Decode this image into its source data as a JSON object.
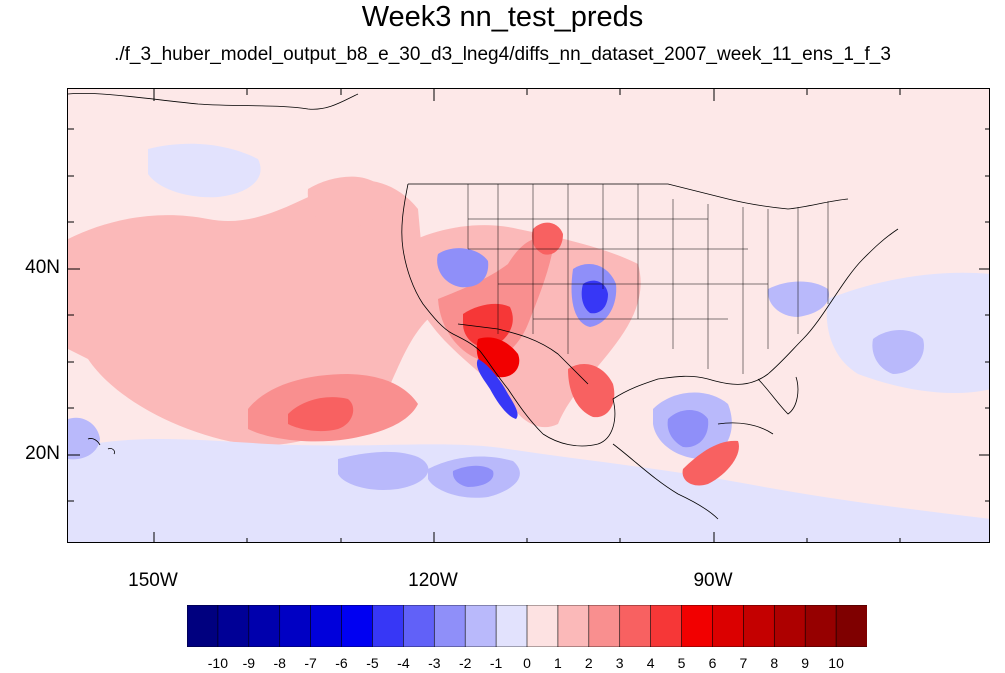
{
  "figure": {
    "title": "Week3 nn_test_preds",
    "subtitle": "./f_3_huber_model_output_b8_e_30_d3_lneg4/diffs_nn_dataset_2007_week_11_ens_1_f_3"
  },
  "map": {
    "projection": "cylindrical equidistant",
    "lon_range": [
      -160,
      -60
    ],
    "lat_range": [
      10,
      58
    ],
    "lat_ticks": [
      {
        "value": 40,
        "label": "40N"
      },
      {
        "value": 20,
        "label": "20N"
      }
    ],
    "lon_ticks": [
      {
        "value": -150,
        "label": "150W"
      },
      {
        "value": -120,
        "label": "120W"
      },
      {
        "value": -90,
        "label": "90W"
      }
    ],
    "background_level": "0 to 1",
    "features": [
      "coastlines",
      "US state boundaries",
      "national borders"
    ]
  },
  "colorbar": {
    "labels": [
      "-10",
      "-9",
      "-8",
      "-7",
      "-6",
      "-5",
      "-4",
      "-3",
      "-2",
      "-1",
      "0",
      "1",
      "2",
      "3",
      "4",
      "5",
      "6",
      "7",
      "8",
      "9",
      "10"
    ],
    "colors": [
      "#00007f",
      "#000096",
      "#0000ad",
      "#0000c4",
      "#0000db",
      "#0000f2",
      "#3737f6",
      "#6161f8",
      "#8f8ff9",
      "#b9b9fb",
      "#e2e2fd",
      "#fde2e2",
      "#fbb9b9",
      "#f98f8f",
      "#f86161",
      "#f63737",
      "#f20000",
      "#db0000",
      "#c40000",
      "#ad0000",
      "#960000",
      "#7f0000"
    ]
  }
}
